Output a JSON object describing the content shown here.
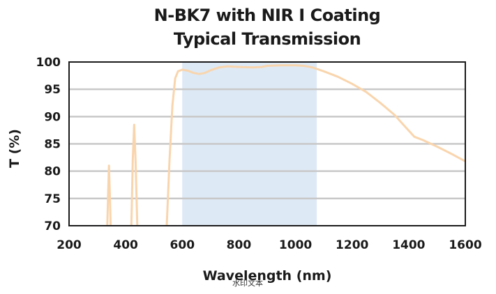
{
  "chart_data": {
    "type": "line",
    "title": "N-BK7 with NIR I Coating",
    "subtitle": "Typical Transmission",
    "xlabel": "Wavelength (nm)",
    "ylabel": "T (%)",
    "xlim": [
      200,
      1600
    ],
    "ylim": [
      70,
      100
    ],
    "xticks": [
      200,
      400,
      600,
      800,
      1000,
      1200,
      1400,
      1600
    ],
    "yticks": [
      70,
      75,
      80,
      85,
      90,
      95,
      100
    ],
    "grid": "horizontal",
    "design_band": [
      600,
      1075
    ],
    "colors": {
      "line": "#f9d5ad",
      "band": "#dde9f5",
      "grid": "#c8c8c8",
      "frame": "#1a1a1a"
    },
    "series": [
      {
        "values_segments": [
          [
            [
              335,
              70
            ],
            [
              338,
              76
            ],
            [
              341,
              81
            ],
            [
              344,
              76
            ],
            [
              347,
              70
            ]
          ],
          [
            [
              420,
              70
            ],
            [
              425,
              82
            ],
            [
              430,
              88.5
            ],
            [
              435,
              82
            ],
            [
              441,
              70
            ]
          ],
          [
            [
              545,
              70
            ],
            [
              555,
              82
            ],
            [
              565,
              92
            ],
            [
              575,
              97
            ],
            [
              585,
              98.3
            ],
            [
              600,
              98.6
            ],
            [
              620,
              98.4
            ],
            [
              640,
              98.0
            ],
            [
              660,
              97.8
            ],
            [
              680,
              98.0
            ],
            [
              700,
              98.5
            ],
            [
              730,
              99.0
            ],
            [
              760,
              99.2
            ],
            [
              800,
              99.1
            ],
            [
              850,
              99.0
            ],
            [
              880,
              99.1
            ],
            [
              900,
              99.3
            ],
            [
              950,
              99.4
            ],
            [
              1000,
              99.4
            ],
            [
              1030,
              99.3
            ],
            [
              1060,
              99.0
            ],
            [
              1100,
              98.3
            ],
            [
              1150,
              97.3
            ],
            [
              1200,
              96.0
            ],
            [
              1250,
              94.5
            ],
            [
              1300,
              92.5
            ],
            [
              1350,
              90.3
            ],
            [
              1390,
              88.0
            ],
            [
              1420,
              86.3
            ],
            [
              1450,
              85.7
            ],
            [
              1500,
              84.5
            ],
            [
              1550,
              83.2
            ],
            [
              1600,
              81.8
            ]
          ]
        ]
      }
    ],
    "watermark": "水印文本"
  }
}
